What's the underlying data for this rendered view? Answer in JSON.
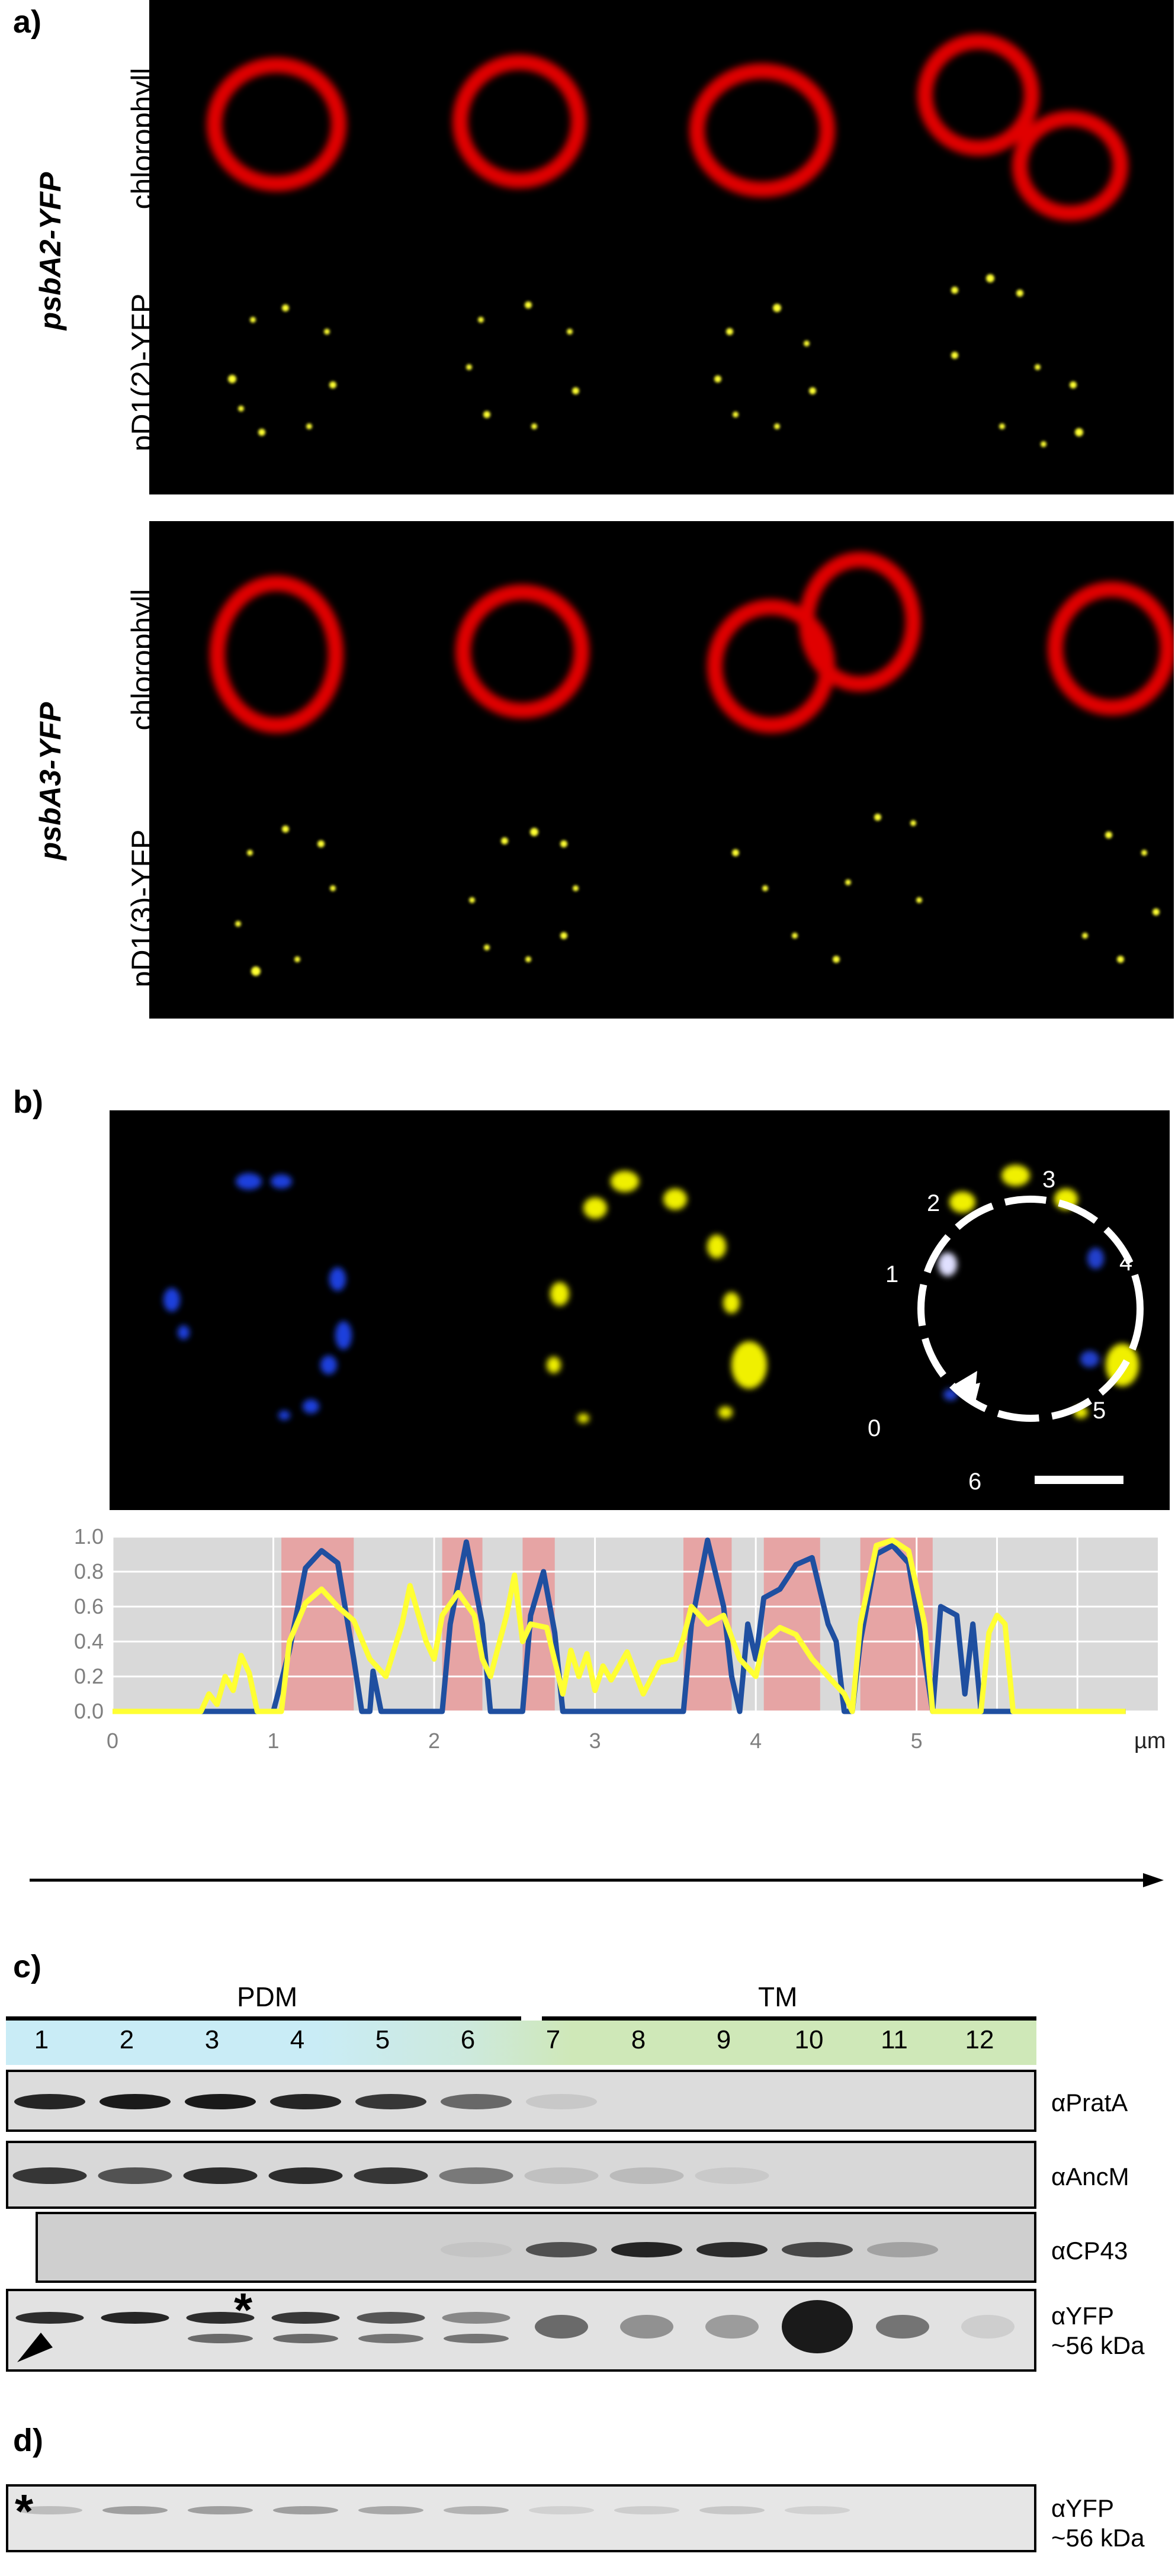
{
  "panel_a": {
    "label": "a)",
    "rows": [
      {
        "genotype": "psbA2-YFP",
        "row_labels": [
          "chlorophyll",
          "pD1(2)-YFP"
        ]
      },
      {
        "genotype": "psbA3-YFP",
        "row_labels": [
          "chlorophyll",
          "pD1(3)-YFP"
        ]
      }
    ]
  },
  "panel_b": {
    "label": "b)",
    "position_labels": [
      "0",
      "1",
      "2",
      "3",
      "4",
      "5",
      "6"
    ],
    "colors": {
      "blue": "#1f3fbf",
      "yellow": "#ffff33",
      "overlap_orange": "#ffa500",
      "overlap_purple": "#6b3a8a",
      "highlight": "#e89a9a"
    },
    "chart_data": {
      "type": "line",
      "xlabel": "µm",
      "xlim": [
        0,
        6.5
      ],
      "ylim": [
        0,
        1.0
      ],
      "x_ticks": [
        "0",
        "1",
        "2",
        "3",
        "4",
        "5"
      ],
      "y_ticks": [
        "0.0",
        "0.2",
        "0.4",
        "0.6",
        "0.8",
        "1.0"
      ],
      "grid": true,
      "highlight_ranges": [
        [
          1.05,
          1.5
        ],
        [
          2.05,
          2.3
        ],
        [
          2.55,
          2.75
        ],
        [
          3.55,
          3.85
        ],
        [
          4.05,
          4.4
        ],
        [
          4.65,
          5.1
        ]
      ],
      "series": [
        {
          "color": "#ffff33",
          "points": [
            [
              0,
              0
            ],
            [
              0.55,
              0
            ],
            [
              0.6,
              0.1
            ],
            [
              0.65,
              0.04
            ],
            [
              0.7,
              0.2
            ],
            [
              0.75,
              0.12
            ],
            [
              0.8,
              0.32
            ],
            [
              0.85,
              0.22
            ],
            [
              0.9,
              0
            ],
            [
              1.05,
              0
            ],
            [
              1.1,
              0.4
            ],
            [
              1.2,
              0.62
            ],
            [
              1.3,
              0.7
            ],
            [
              1.4,
              0.6
            ],
            [
              1.5,
              0.52
            ],
            [
              1.6,
              0.3
            ],
            [
              1.7,
              0.2
            ],
            [
              1.8,
              0.5
            ],
            [
              1.85,
              0.72
            ],
            [
              1.95,
              0.4
            ],
            [
              2.0,
              0.3
            ],
            [
              2.05,
              0.55
            ],
            [
              2.15,
              0.68
            ],
            [
              2.25,
              0.55
            ],
            [
              2.3,
              0.3
            ],
            [
              2.35,
              0.2
            ],
            [
              2.45,
              0.55
            ],
            [
              2.5,
              0.78
            ],
            [
              2.55,
              0.4
            ],
            [
              2.6,
              0.5
            ],
            [
              2.7,
              0.48
            ],
            [
              2.8,
              0.1
            ],
            [
              2.85,
              0.35
            ],
            [
              2.9,
              0.2
            ],
            [
              2.95,
              0.33
            ],
            [
              3.0,
              0.12
            ],
            [
              3.05,
              0.26
            ],
            [
              3.1,
              0.18
            ],
            [
              3.2,
              0.34
            ],
            [
              3.3,
              0.1
            ],
            [
              3.4,
              0.28
            ],
            [
              3.5,
              0.3
            ],
            [
              3.55,
              0.42
            ],
            [
              3.6,
              0.6
            ],
            [
              3.7,
              0.5
            ],
            [
              3.8,
              0.55
            ],
            [
              3.9,
              0.3
            ],
            [
              4.0,
              0.2
            ],
            [
              4.05,
              0.4
            ],
            [
              4.15,
              0.48
            ],
            [
              4.25,
              0.44
            ],
            [
              4.35,
              0.3
            ],
            [
              4.45,
              0.2
            ],
            [
              4.55,
              0.1
            ],
            [
              4.6,
              0
            ],
            [
              4.65,
              0.5
            ],
            [
              4.75,
              0.95
            ],
            [
              4.85,
              0.98
            ],
            [
              4.95,
              0.92
            ],
            [
              5.05,
              0.5
            ],
            [
              5.1,
              0
            ],
            [
              5.4,
              0
            ],
            [
              5.45,
              0.45
            ],
            [
              5.5,
              0.55
            ],
            [
              5.55,
              0.5
            ],
            [
              5.6,
              0
            ],
            [
              6.3,
              0
            ]
          ]
        },
        {
          "color": "#1f4fa0",
          "points": [
            [
              0,
              0
            ],
            [
              1.0,
              0
            ],
            [
              1.1,
              0.35
            ],
            [
              1.2,
              0.82
            ],
            [
              1.3,
              0.92
            ],
            [
              1.4,
              0.85
            ],
            [
              1.5,
              0.3
            ],
            [
              1.55,
              0
            ],
            [
              1.6,
              0
            ],
            [
              1.62,
              0.23
            ],
            [
              1.67,
              0
            ],
            [
              2.05,
              0
            ],
            [
              2.1,
              0.5
            ],
            [
              2.2,
              0.97
            ],
            [
              2.3,
              0.5
            ],
            [
              2.35,
              0
            ],
            [
              2.55,
              0
            ],
            [
              2.6,
              0.55
            ],
            [
              2.68,
              0.8
            ],
            [
              2.75,
              0.45
            ],
            [
              2.8,
              0
            ],
            [
              3.55,
              0
            ],
            [
              3.6,
              0.5
            ],
            [
              3.7,
              0.98
            ],
            [
              3.8,
              0.6
            ],
            [
              3.85,
              0.2
            ],
            [
              3.9,
              0
            ],
            [
              3.95,
              0.5
            ],
            [
              4.0,
              0.3
            ],
            [
              4.05,
              0.65
            ],
            [
              4.15,
              0.7
            ],
            [
              4.25,
              0.84
            ],
            [
              4.35,
              0.88
            ],
            [
              4.45,
              0.5
            ],
            [
              4.5,
              0.4
            ],
            [
              4.55,
              0
            ],
            [
              4.6,
              0
            ],
            [
              4.65,
              0.4
            ],
            [
              4.75,
              0.9
            ],
            [
              4.85,
              0.95
            ],
            [
              4.95,
              0.85
            ],
            [
              5.05,
              0.3
            ],
            [
              5.1,
              0
            ],
            [
              5.15,
              0.6
            ],
            [
              5.25,
              0.55
            ],
            [
              5.3,
              0.1
            ],
            [
              5.35,
              0.5
            ],
            [
              5.4,
              0
            ],
            [
              5.6,
              0
            ],
            [
              6.3,
              0
            ]
          ]
        }
      ]
    }
  },
  "panel_c": {
    "label": "c)",
    "group_labels": [
      "PDM",
      "TM"
    ],
    "lanes": [
      "1",
      "2",
      "3",
      "4",
      "5",
      "6",
      "7",
      "8",
      "9",
      "10",
      "11",
      "12"
    ],
    "blots": [
      {
        "antibody": "αPratA",
        "sub": ""
      },
      {
        "antibody": "αAncM",
        "sub": ""
      },
      {
        "antibody": "αCP43",
        "sub": ""
      },
      {
        "antibody": "αYFP",
        "sub": "~56 kDa"
      }
    ],
    "asterisk": "*"
  },
  "panel_d": {
    "label": "d)",
    "blot": {
      "antibody": "αYFP",
      "sub": "~56 kDa"
    },
    "asterisk": "*"
  }
}
